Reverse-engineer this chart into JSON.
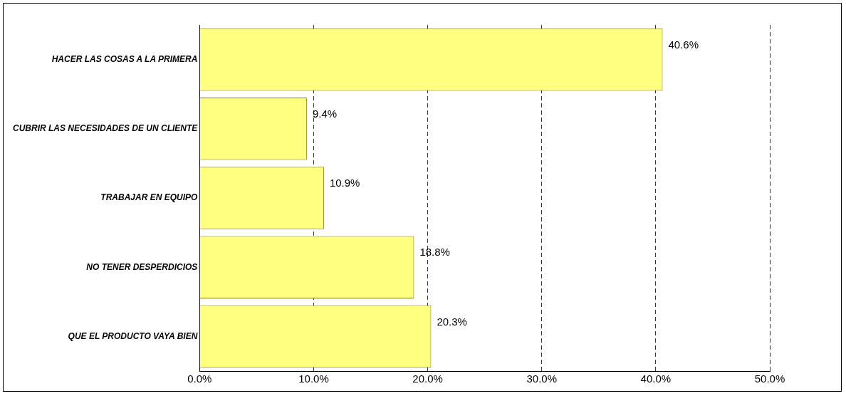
{
  "chart_data": {
    "type": "bar",
    "orientation": "horizontal",
    "categories": [
      "HACER LAS COSAS A LA PRIMERA",
      "CUBRIR LAS NECESIDADES DE UN CLIENTE",
      "TRABAJAR EN EQUIPO",
      "NO TENER DESPERDICIOS",
      "QUE EL PRODUCTO VAYA BIEN"
    ],
    "values": [
      40.6,
      9.4,
      10.9,
      18.8,
      20.3
    ],
    "color": "#ffff80",
    "value_labels": [
      "40.6%",
      "9.4%",
      "10.9%",
      "18.8%",
      "20.3%"
    ],
    "xlim": [
      0,
      50
    ],
    "xticks": [
      {
        "value": 0,
        "label": "0.0%"
      },
      {
        "value": 10,
        "label": "10.0%"
      },
      {
        "value": 20,
        "label": "20.0%"
      },
      {
        "value": 30,
        "label": "30.0%"
      },
      {
        "value": 40,
        "label": "40.0%"
      },
      {
        "value": 50,
        "label": "50.0%"
      }
    ],
    "grid": "x",
    "legend": false
  }
}
